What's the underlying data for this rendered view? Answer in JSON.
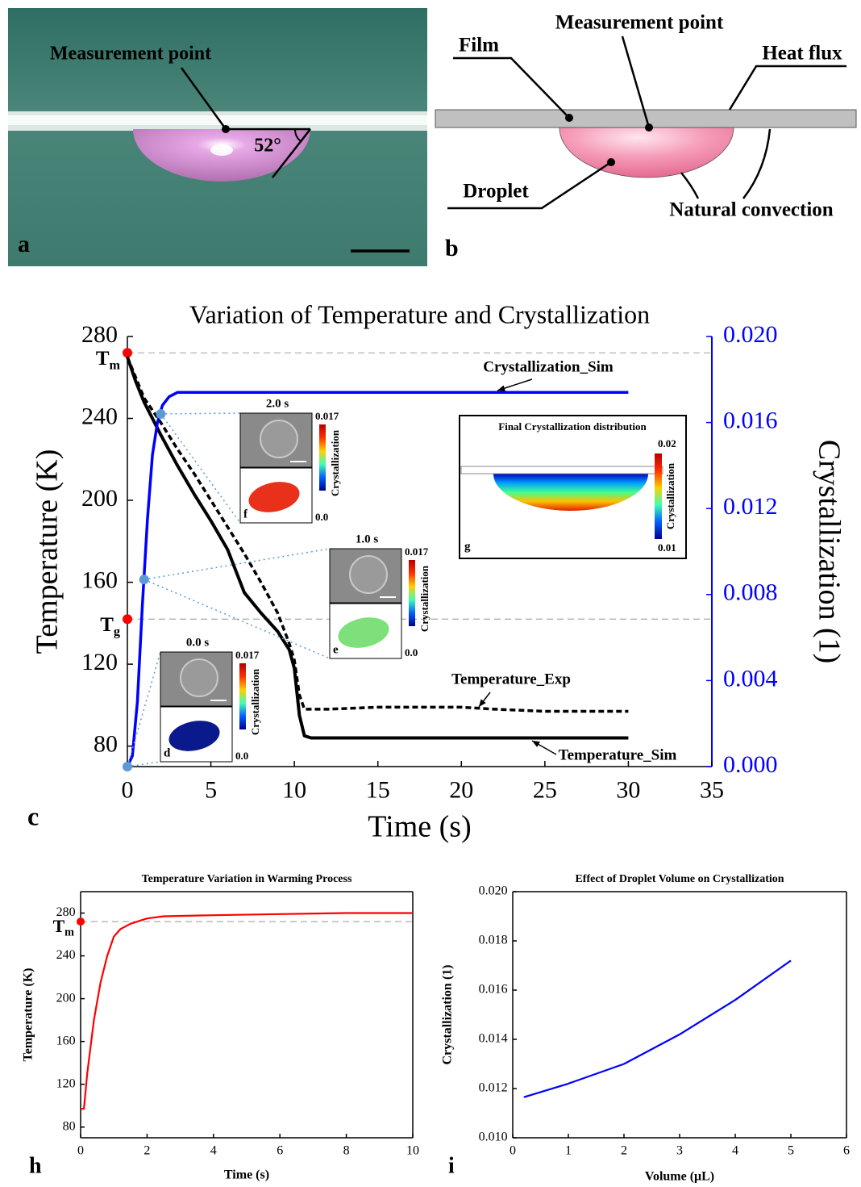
{
  "panels": {
    "a": {
      "label": "a",
      "measurement_point": "Measurement point",
      "angle": "52°"
    },
    "b": {
      "label": "b",
      "film": "Film",
      "measurement_point": "Measurement point",
      "heat_flux": "Heat flux",
      "droplet": "Droplet",
      "natural_convection": "Natural convection"
    }
  },
  "chart_data": [
    {
      "type": "line",
      "panel_label": "c",
      "title": "Variation of Temperature and Crystallization",
      "xlabel": "Time (s)",
      "ylabel": "Temperature (K)",
      "y2label": "Crystallization (1)",
      "xlim": [
        0,
        35
      ],
      "xticks": [
        0,
        5,
        10,
        15,
        20,
        25,
        30,
        35
      ],
      "ylim": [
        70,
        280
      ],
      "yticks": [
        80,
        120,
        160,
        200,
        240,
        280
      ],
      "y2lim": [
        0,
        0.02
      ],
      "y2ticks": [
        {
          "value": 0,
          "label": "0.000"
        },
        {
          "value": 0.004,
          "label": "0.004"
        },
        {
          "value": 0.008,
          "label": "0.008"
        },
        {
          "value": 0.012,
          "label": "0.012"
        },
        {
          "value": 0.016,
          "label": "0.016"
        },
        {
          "value": 0.02,
          "label": "0.020"
        }
      ],
      "series": [
        {
          "name": "Temperature_Sim",
          "color": "#000000",
          "style": "solid",
          "x": [
            0,
            0.5,
            1,
            2,
            3,
            4,
            5,
            6,
            7,
            8,
            9,
            9.7,
            10,
            10.3,
            10.6,
            11,
            15,
            20,
            25,
            30
          ],
          "values": [
            270,
            258,
            248,
            232,
            217,
            203,
            190,
            176,
            155,
            145,
            136,
            127,
            118,
            95,
            85,
            84,
            84,
            84,
            84,
            84
          ]
        },
        {
          "name": "Temperature_Exp",
          "color": "#000000",
          "style": "dashed",
          "x": [
            0,
            1,
            2,
            3,
            4,
            5,
            6,
            7,
            8,
            9,
            9.7,
            10,
            10.3,
            10.6,
            12,
            15,
            20,
            22,
            25,
            30
          ],
          "values": [
            270,
            250,
            238,
            225,
            213,
            200,
            187,
            174,
            160,
            145,
            130,
            122,
            105,
            98,
            98,
            99,
            99,
            98,
            97,
            97
          ]
        },
        {
          "name": "Crystallization_Sim",
          "color": "#0000ff",
          "style": "solid",
          "axis": "y2",
          "x": [
            0,
            0.3,
            0.6,
            0.9,
            1.2,
            1.5,
            1.8,
            2.1,
            2.5,
            3,
            4,
            30
          ],
          "values": [
            0,
            0.0005,
            0.003,
            0.0075,
            0.0115,
            0.0145,
            0.016,
            0.0168,
            0.0172,
            0.0174,
            0.0174,
            0.0174
          ]
        }
      ],
      "reference_lines": [
        {
          "symbol": "T",
          "subscript": "m",
          "value": 272,
          "color": "#ff0000"
        },
        {
          "symbol": "T",
          "subscript": "g",
          "value": 142,
          "color": "#ff0000"
        }
      ],
      "points": {
        "axis": "y2",
        "color": "#5b9bd5",
        "x": [
          0,
          1,
          2
        ],
        "values": [
          0,
          0.0087,
          0.0164
        ]
      },
      "insets": [
        {
          "label": "d",
          "time": "0.0 s",
          "cbar_max": "0.017",
          "cbar_min": "0.0",
          "cbar_title": "Crystallization"
        },
        {
          "label": "e",
          "time": "1.0 s",
          "cbar_max": "0.017",
          "cbar_min": "0.0",
          "cbar_title": "Crystallization"
        },
        {
          "label": "f",
          "time": "2.0 s",
          "cbar_max": "0.017",
          "cbar_min": "0.0",
          "cbar_title": "Crystallization"
        },
        {
          "label": "g",
          "title": "Final Crystallization distribution",
          "cbar_max": "0.02",
          "cbar_min": "0.01",
          "cbar_title": "Crystallization"
        }
      ]
    },
    {
      "type": "line",
      "panel_label": "h",
      "title": "Temperature Variation in Warming Process",
      "xlabel": "Time (s)",
      "ylabel": "Temperature (K)",
      "xlim": [
        0,
        10
      ],
      "xticks": [
        0,
        2,
        4,
        6,
        8,
        10
      ],
      "ylim": [
        70,
        300
      ],
      "yticks": [
        80,
        120,
        160,
        200,
        240,
        280
      ],
      "series": [
        {
          "color": "#ff0000",
          "style": "solid",
          "x": [
            0,
            0.1,
            0.2,
            0.4,
            0.6,
            0.8,
            1,
            1.2,
            1.5,
            2,
            2.5,
            4,
            6,
            8,
            10
          ],
          "values": [
            97,
            97,
            130,
            180,
            215,
            240,
            258,
            265,
            270,
            275,
            277,
            278,
            279,
            280,
            280
          ]
        }
      ],
      "reference_lines": [
        {
          "symbol": "T",
          "subscript": "m",
          "value": 272,
          "color": "#ff0000"
        }
      ]
    },
    {
      "type": "line",
      "panel_label": "i",
      "title": "Effect of Droplet Volume on Crystallization",
      "xlabel": "Volume (μL)",
      "ylabel": "Crystallization (1)",
      "xlim": [
        0,
        6
      ],
      "xticks": [
        0,
        1,
        2,
        3,
        4,
        5,
        6
      ],
      "ylim": [
        0.01,
        0.02
      ],
      "yticks": [
        {
          "value": 0.01,
          "label": "0.010"
        },
        {
          "value": 0.012,
          "label": "0.012"
        },
        {
          "value": 0.014,
          "label": "0.014"
        },
        {
          "value": 0.016,
          "label": "0.016"
        },
        {
          "value": 0.018,
          "label": "0.018"
        },
        {
          "value": 0.02,
          "label": "0.020"
        }
      ],
      "series": [
        {
          "color": "#0000ff",
          "style": "solid",
          "x": [
            0.2,
            1,
            2,
            3,
            4,
            5
          ],
          "values": [
            0.01165,
            0.0122,
            0.013,
            0.0142,
            0.0156,
            0.0172
          ]
        }
      ]
    }
  ]
}
